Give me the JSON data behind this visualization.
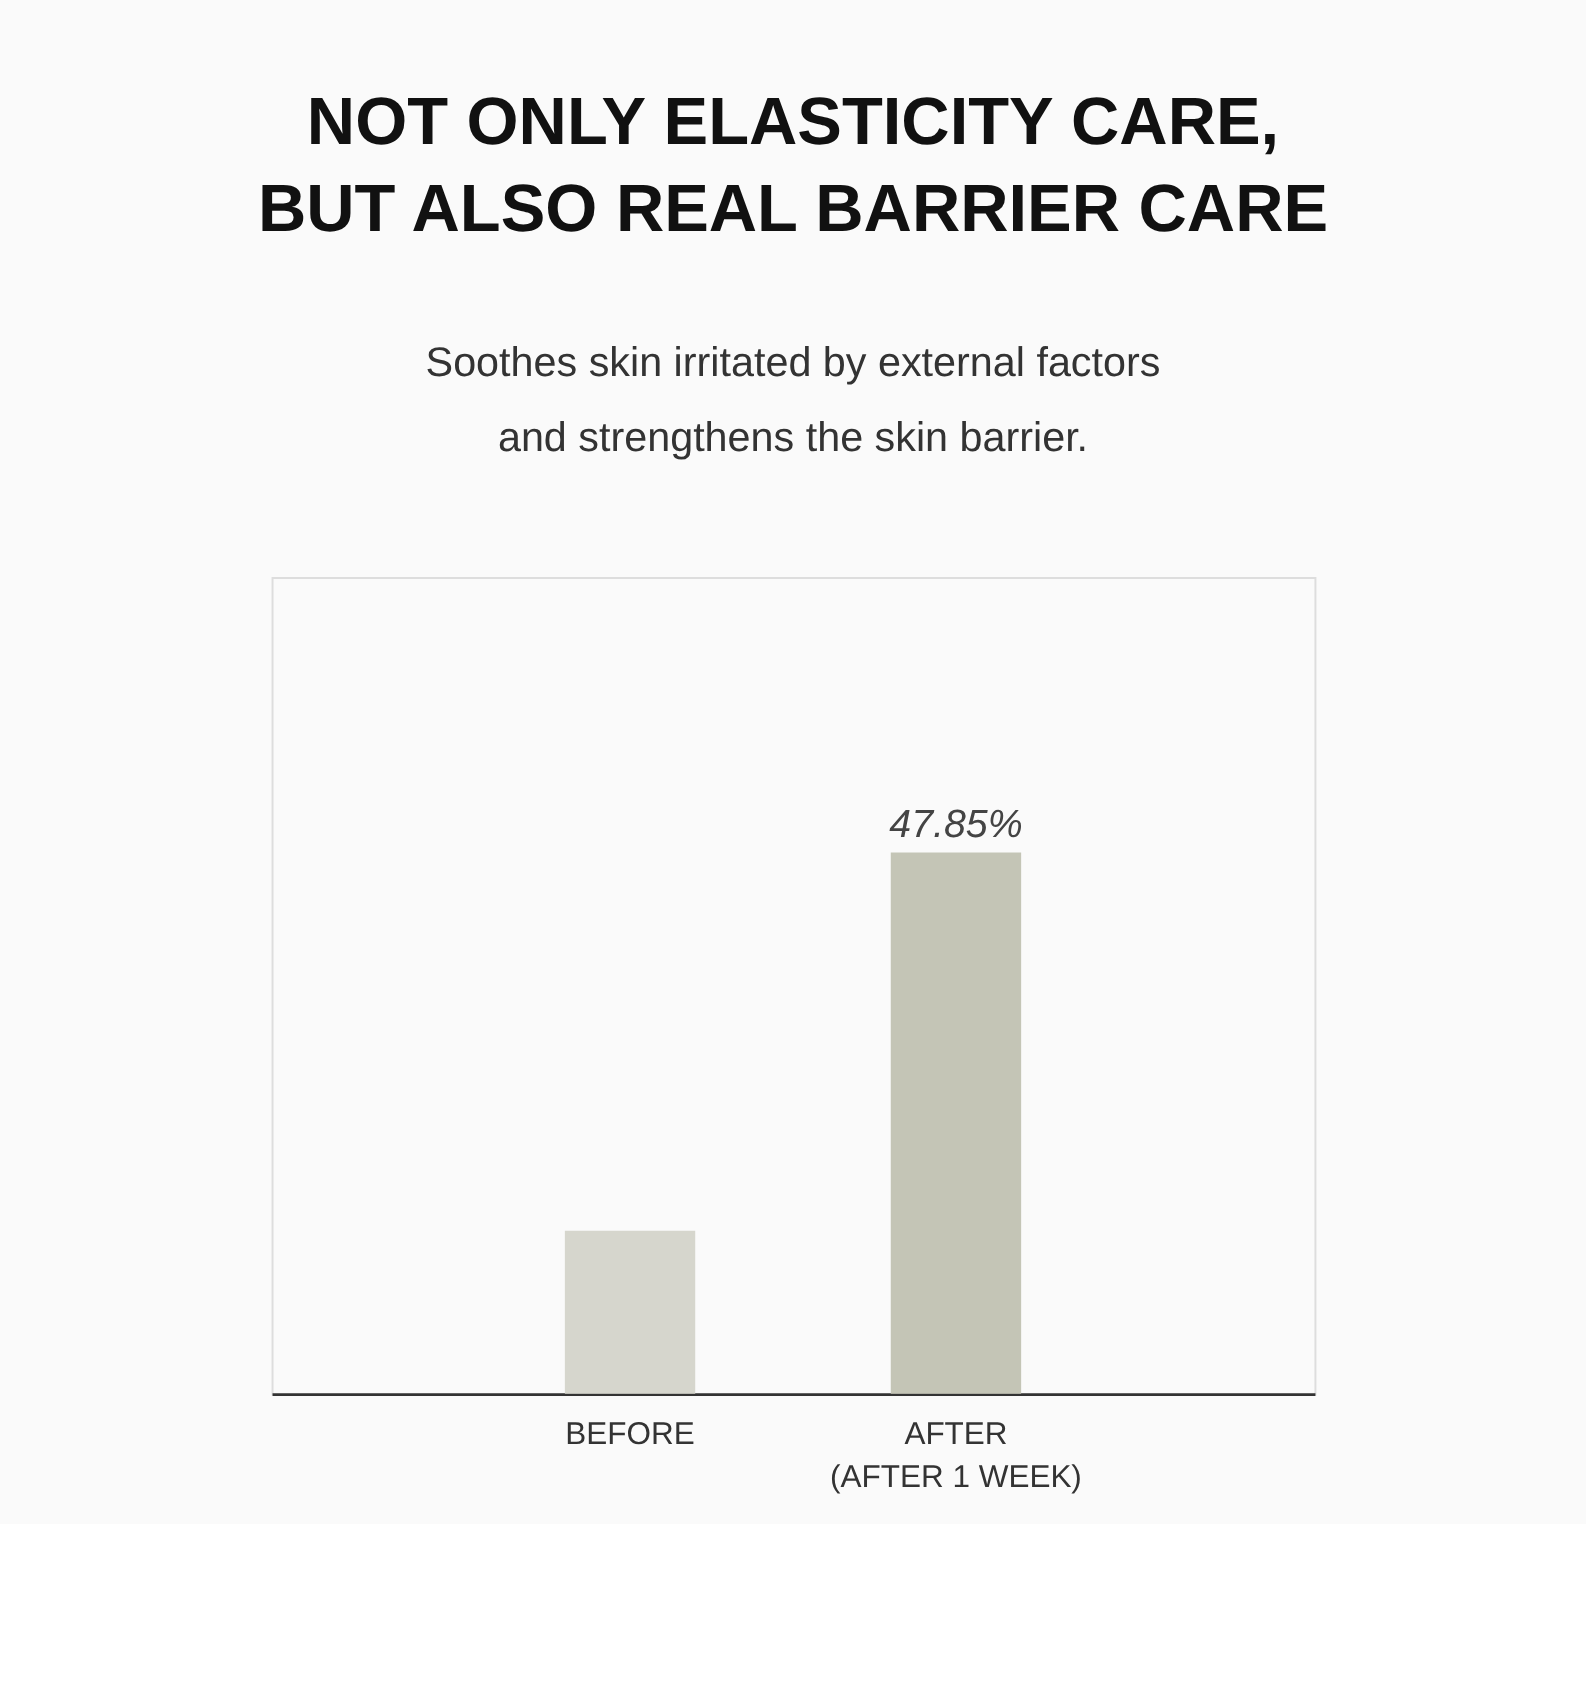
{
  "chart_data": {
    "type": "bar",
    "title": [
      "NOT ONLY ELASTICITY CARE,",
      "BUT ALSO REAL BARRIER CARE"
    ],
    "subtitle": [
      "Soothes skin irritated by external factors",
      "and strengthens the skin barrier."
    ],
    "categories": [
      "BEFORE",
      "AFTER\n(AFTER 1 WEEK)"
    ],
    "values": [
      14.4,
      47.85
    ],
    "colors": [
      "#d6d6cd",
      "#c4c5b6"
    ],
    "value_labels": [
      null,
      "47.85%"
    ]
  }
}
